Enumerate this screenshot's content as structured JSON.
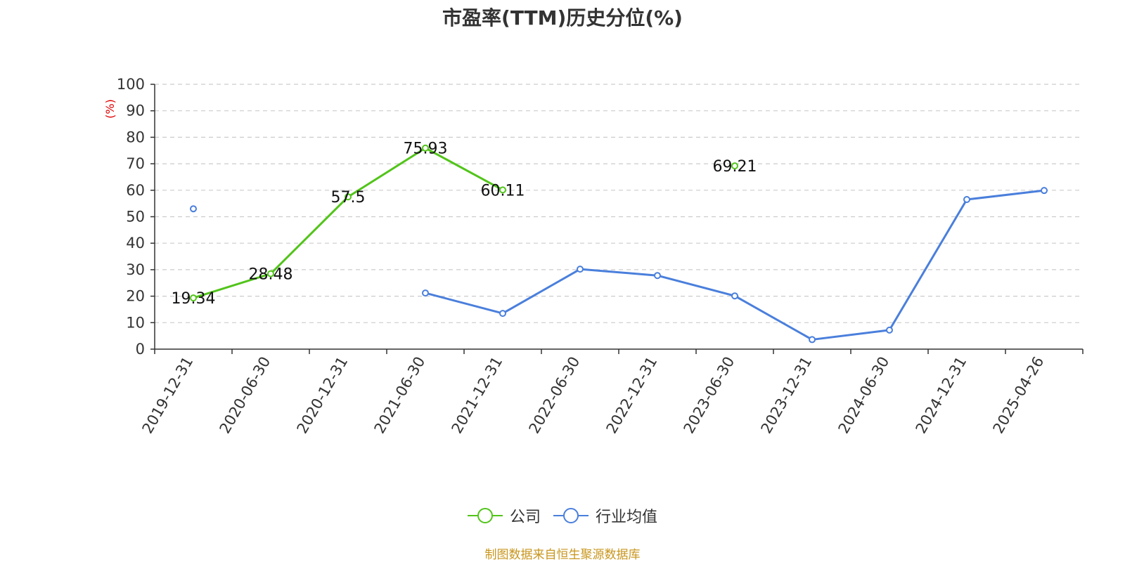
{
  "chart_data": {
    "type": "line",
    "title": "市盈率(TTM)历史分位(%)",
    "ylabel": "(%)",
    "xlabel": "",
    "ylim": [
      0,
      100
    ],
    "yticks": [
      0,
      10,
      20,
      30,
      40,
      50,
      60,
      70,
      80,
      90,
      100
    ],
    "grid": true,
    "legend_position": "bottom",
    "categories": [
      "2019-12-31",
      "2020-06-30",
      "2020-12-31",
      "2021-06-30",
      "2021-12-31",
      "2022-06-30",
      "2022-12-31",
      "2023-06-30",
      "2023-12-31",
      "2024-06-30",
      "2024-12-31",
      "2025-04-26"
    ],
    "series": [
      {
        "name": "公司",
        "color": "#52c41a",
        "show_labels": true,
        "values": [
          19.34,
          28.48,
          57.5,
          75.93,
          60.11,
          null,
          null,
          69.21,
          null,
          null,
          null,
          null
        ]
      },
      {
        "name": "行业均值",
        "color": "#4a7fdc",
        "show_labels": false,
        "values": [
          53,
          null,
          null,
          21.2,
          13.5,
          30.2,
          27.8,
          20.1,
          3.6,
          7.2,
          56.5,
          59.9
        ]
      }
    ]
  },
  "source_text": "制图数据来自恒生聚源数据库"
}
